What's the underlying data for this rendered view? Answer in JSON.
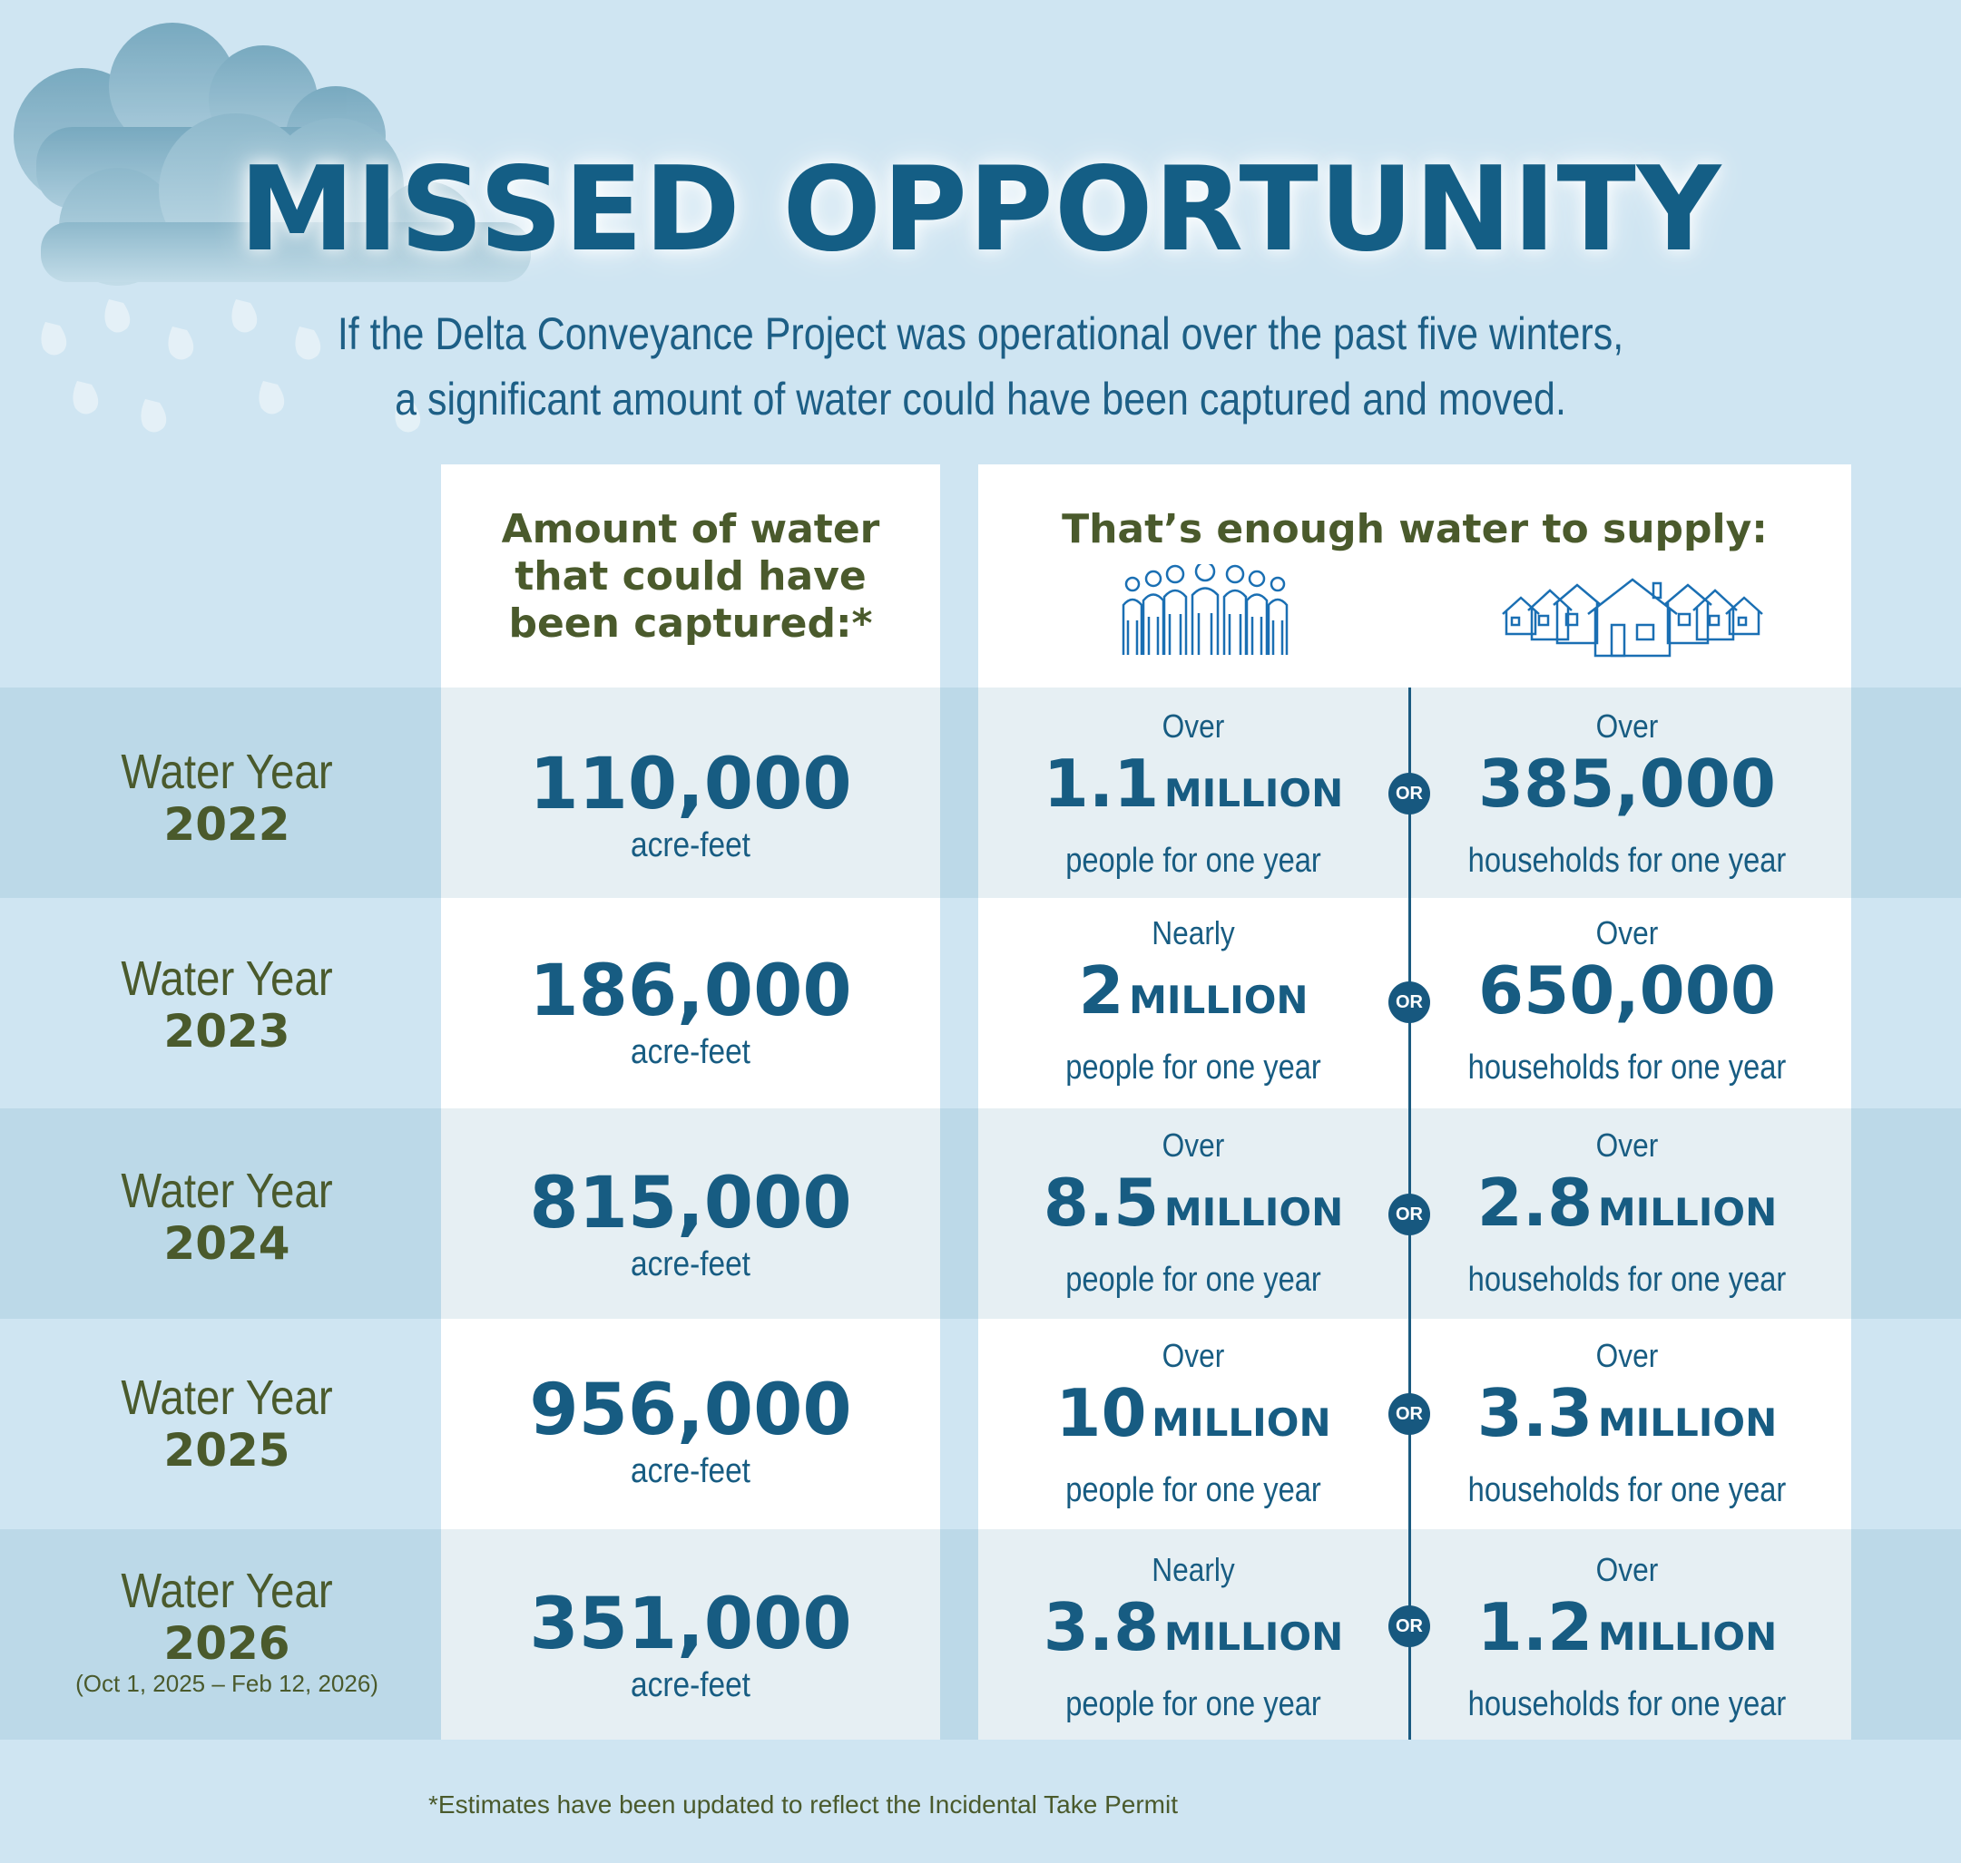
{
  "title": "MISSED OPPORTUNITY",
  "subtitle_line1": "If the Delta Conveyance Project was operational over the past five winters,",
  "subtitle_line2": "a significant amount of water could have been captured and moved.",
  "header": {
    "amount_line1": "Amount of water",
    "amount_line2": "that could have",
    "amount_line3": "been captured:*",
    "supply": "That’s enough water to supply:",
    "people_icon": "people-group-icon",
    "houses_icon": "houses-icon"
  },
  "or_label": "OR",
  "rows": [
    {
      "label": "Water Year",
      "year": "2022",
      "note": "",
      "amount": "110,000",
      "unit": "acre-feet",
      "people": {
        "qualifier": "Over",
        "number": "1.1",
        "magnitude": "MILLION",
        "desc": "people for one year"
      },
      "households": {
        "qualifier": "Over",
        "number": "385,000",
        "magnitude": "",
        "desc": "households for one year"
      }
    },
    {
      "label": "Water Year",
      "year": "2023",
      "note": "",
      "amount": "186,000",
      "unit": "acre-feet",
      "people": {
        "qualifier": "Nearly",
        "number": "2",
        "magnitude": "MILLION",
        "desc": "people for one year"
      },
      "households": {
        "qualifier": "Over",
        "number": "650,000",
        "magnitude": "",
        "desc": "households for one year"
      }
    },
    {
      "label": "Water Year",
      "year": "2024",
      "note": "",
      "amount": "815,000",
      "unit": "acre-feet",
      "people": {
        "qualifier": "Over",
        "number": "8.5",
        "magnitude": "MILLION",
        "desc": "people for one year"
      },
      "households": {
        "qualifier": "Over",
        "number": "2.8",
        "magnitude": "MILLION",
        "desc": "households for one year"
      }
    },
    {
      "label": "Water Year",
      "year": "2025",
      "note": "",
      "amount": "956,000",
      "unit": "acre-feet",
      "people": {
        "qualifier": "Over",
        "number": "10",
        "magnitude": "MILLION",
        "desc": "people for one year"
      },
      "households": {
        "qualifier": "Over",
        "number": "3.3",
        "magnitude": "MILLION",
        "desc": "households for one year"
      }
    },
    {
      "label": "Water Year",
      "year": "2026",
      "note": "(Oct 1, 2025 – Feb 12, 2026)",
      "amount": "351,000",
      "unit": "acre-feet",
      "people": {
        "qualifier": "Nearly",
        "number": "3.8",
        "magnitude": "MILLION",
        "desc": "people for one year"
      },
      "households": {
        "qualifier": "Over",
        "number": "1.2",
        "magnitude": "MILLION",
        "desc": "households for one year"
      }
    }
  ],
  "footnote": "*Estimates have been updated to reflect the Incidental Take Permit",
  "colors": {
    "title": "#145e85",
    "label_green": "#4a5a2c",
    "value_blue": "#175c82",
    "background": "#cfe5f2"
  }
}
